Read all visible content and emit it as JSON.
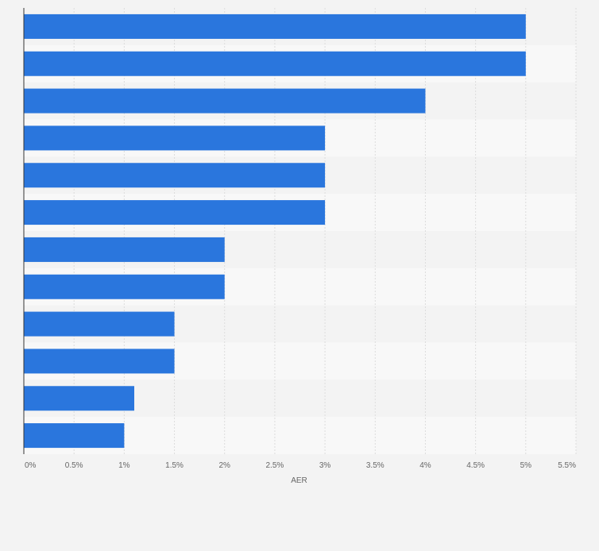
{
  "chart_data": {
    "type": "bar",
    "orientation": "horizontal",
    "categories": [
      "",
      "",
      "",
      "",
      "",
      "",
      "",
      "",
      "",
      "",
      "",
      ""
    ],
    "values": [
      5,
      5,
      4,
      3,
      3,
      3,
      2,
      2,
      1.5,
      1.5,
      1.1,
      1.0
    ],
    "title": "",
    "xlabel": "AER",
    "ylabel": "",
    "xlim": [
      0,
      5.5
    ],
    "x_ticks": [
      0,
      0.5,
      1,
      1.5,
      2,
      2.5,
      3,
      3.5,
      4,
      4.5,
      5,
      5.5
    ],
    "x_tick_labels": [
      "0%",
      "0.5%",
      "1%",
      "1.5%",
      "2%",
      "2.5%",
      "3%",
      "3.5%",
      "4%",
      "4.5%",
      "5%",
      "5.5%"
    ],
    "grid": true,
    "legend": "none",
    "colors": {
      "bar": "#2a76dd",
      "band_even": "#f3f3f3",
      "band_odd": "#f8f8f8",
      "grid": "#dcdcdc",
      "axis": "#333333",
      "tick_text": "#666666",
      "page_bg": "#f3f3f3"
    }
  }
}
